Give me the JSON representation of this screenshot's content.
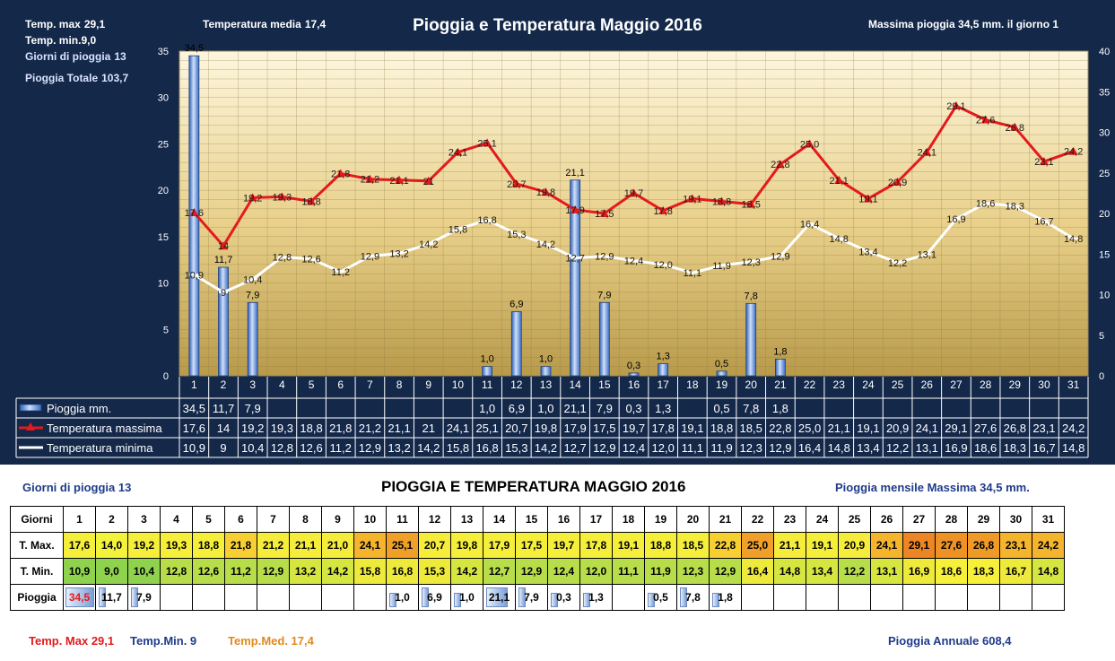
{
  "header": {
    "temp_max_label": "Temp. max",
    "temp_max_value": "29,1",
    "temp_min_text": "Temp.  min.9,0",
    "rain_days_label": "Giorni di pioggia",
    "rain_days_value": "13",
    "rain_total_label": "Pioggia Totale",
    "rain_total_value": "103,7",
    "temp_media_label": "Temperatura media",
    "temp_media_value": "17,4",
    "title": "Pioggia e Temperatura Maggio 2016",
    "max_rain_text": "Massima pioggia 34,5  mm.  il giorno  1"
  },
  "chart_data": {
    "type": "bar+line",
    "title": "Pioggia e Temperatura Maggio 2016",
    "categories": [
      "1",
      "2",
      "3",
      "4",
      "5",
      "6",
      "7",
      "8",
      "9",
      "10",
      "11",
      "12",
      "13",
      "14",
      "15",
      "16",
      "17",
      "18",
      "19",
      "20",
      "21",
      "22",
      "23",
      "24",
      "25",
      "26",
      "27",
      "28",
      "29",
      "30",
      "31"
    ],
    "left_axis": {
      "min": 0,
      "max": 35,
      "ticks": [
        "0",
        "5",
        "10",
        "15",
        "20",
        "25",
        "30",
        "35"
      ]
    },
    "right_axis": {
      "min": 0,
      "max": 40,
      "ticks": [
        "0",
        "5",
        "10",
        "15",
        "20",
        "25",
        "30",
        "35",
        "40"
      ]
    },
    "series": [
      {
        "name": "Pioggia mm.",
        "type": "bar",
        "axis": "left",
        "values": [
          34.5,
          11.7,
          7.9,
          null,
          null,
          null,
          null,
          null,
          null,
          null,
          1.0,
          6.9,
          1.0,
          21.1,
          7.9,
          0.3,
          1.3,
          null,
          0.5,
          7.8,
          1.8,
          null,
          null,
          null,
          null,
          null,
          null,
          null,
          null,
          null,
          null
        ],
        "labels": [
          "34,5",
          "11,7",
          "7,9",
          "",
          "",
          "",
          "",
          "",
          "",
          "",
          "1,0",
          "6,9",
          "1,0",
          "21,1",
          "7,9",
          "0,3",
          "1,3",
          "",
          "0,5",
          "7,8",
          "1,8",
          "",
          "",
          "",
          "",
          "",
          "",
          "",
          "",
          "",
          ""
        ]
      },
      {
        "name": "Temperatura massima",
        "type": "line",
        "axis": "left",
        "color": "#e41a1c",
        "values": [
          17.6,
          14,
          19.2,
          19.3,
          18.8,
          21.8,
          21.2,
          21.1,
          21,
          24.1,
          25.1,
          20.7,
          19.8,
          17.9,
          17.5,
          19.7,
          17.8,
          19.1,
          18.8,
          18.5,
          22.8,
          25.0,
          21.1,
          19.1,
          20.9,
          24.1,
          29.1,
          27.6,
          26.8,
          23.1,
          24.2
        ],
        "labels": [
          "17,6",
          "14",
          "19,2",
          "19,3",
          "18,8",
          "21,8",
          "21,2",
          "21,1",
          "21",
          "24,1",
          "25,1",
          "20,7",
          "19,8",
          "17,9",
          "17,5",
          "19,7",
          "17,8",
          "19,1",
          "18,8",
          "18,5",
          "22,8",
          "25,0",
          "21,1",
          "19,1",
          "20,9",
          "24,1",
          "29,1",
          "27,6",
          "26,8",
          "23,1",
          "24,2"
        ]
      },
      {
        "name": "Temperatura minima",
        "type": "line",
        "axis": "left",
        "color": "#ffffff",
        "values": [
          10.9,
          9,
          10.4,
          12.8,
          12.6,
          11.2,
          12.9,
          13.2,
          14.2,
          15.8,
          16.8,
          15.3,
          14.2,
          12.7,
          12.9,
          12.4,
          12.0,
          11.1,
          11.9,
          12.3,
          12.9,
          16.4,
          14.8,
          13.4,
          12.2,
          13.1,
          16.9,
          18.6,
          18.3,
          16.7,
          14.8
        ],
        "labels": [
          "10,9",
          "9",
          "10,4",
          "12,8",
          "12,6",
          "11,2",
          "12,9",
          "13,2",
          "14,2",
          "15,8",
          "16,8",
          "15,3",
          "14,2",
          "12,7",
          "12,9",
          "12,4",
          "12,0",
          "11,1",
          "11,9",
          "12,3",
          "12,9",
          "16,4",
          "14,8",
          "13,4",
          "12,2",
          "13,1",
          "16,9",
          "18,6",
          "18,3",
          "16,7",
          "14,8"
        ]
      }
    ]
  },
  "summary": {
    "rain_days_label": "Giorni di pioggia",
    "rain_days_value": "13",
    "title": "PIOGGIA E TEMPERATURA MAGGIO 2016",
    "monthly_max_label": "Pioggia mensile Massima",
    "monthly_max_value": "34,5",
    "monthly_max_unit": "mm.",
    "row_labels": [
      "Giorni",
      "T. Max.",
      "T. Min.",
      "Pioggia"
    ],
    "days": [
      "1",
      "2",
      "3",
      "4",
      "5",
      "6",
      "7",
      "8",
      "9",
      "10",
      "11",
      "12",
      "13",
      "14",
      "15",
      "16",
      "17",
      "18",
      "19",
      "20",
      "21",
      "22",
      "23",
      "24",
      "25",
      "26",
      "27",
      "28",
      "29",
      "30",
      "31"
    ],
    "tmax": [
      "17,6",
      "14,0",
      "19,2",
      "19,3",
      "18,8",
      "21,8",
      "21,2",
      "21,1",
      "21,0",
      "24,1",
      "25,1",
      "20,7",
      "19,8",
      "17,9",
      "17,5",
      "19,7",
      "17,8",
      "19,1",
      "18,8",
      "18,5",
      "22,8",
      "25,0",
      "21,1",
      "19,1",
      "20,9",
      "24,1",
      "29,1",
      "27,6",
      "26,8",
      "23,1",
      "24,2"
    ],
    "tmin": [
      "10,9",
      "9,0",
      "10,4",
      "12,8",
      "12,6",
      "11,2",
      "12,9",
      "13,2",
      "14,2",
      "15,8",
      "16,8",
      "15,3",
      "14,2",
      "12,7",
      "12,9",
      "12,4",
      "12,0",
      "11,1",
      "11,9",
      "12,3",
      "12,9",
      "16,4",
      "14,8",
      "13,4",
      "12,2",
      "13,1",
      "16,9",
      "18,6",
      "18,3",
      "16,7",
      "14,8"
    ],
    "rain": [
      "34,5",
      "11,7",
      "7,9",
      "",
      "",
      "",
      "",
      "",
      "",
      "",
      "1,0",
      "6,9",
      "1,0",
      "21,1",
      "7,9",
      "0,3",
      "1,3",
      "",
      "0,5",
      "7,8",
      "1,8",
      "",
      "",
      "",
      "",
      "",
      "",
      "",
      "",
      "",
      ""
    ],
    "footer_tmax": "Temp. Max 29,1",
    "footer_tmin": "Temp.Min.  9",
    "footer_tmed": "Temp.Med. 17,4",
    "annual_label": "Pioggia Annuale",
    "annual_value": "608,4",
    "colors": {
      "tmax_red": "#e41a1c",
      "tmin_blue": "#1f3b8a",
      "tmed_orange": "#e08a1e"
    }
  }
}
